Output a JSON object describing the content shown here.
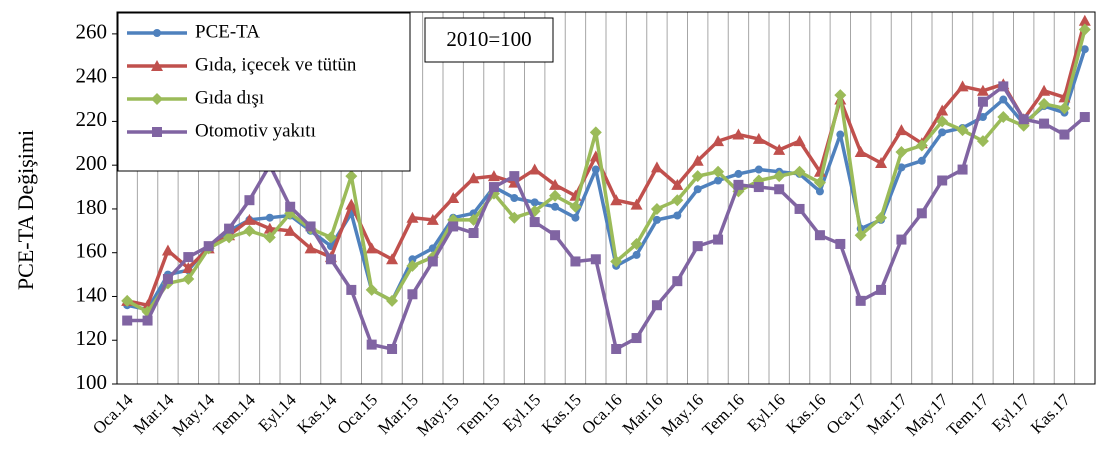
{
  "chart_data": {
    "type": "line",
    "y_label": "PCE-TA Değişimi",
    "annotation": "2010=100",
    "categories": [
      "Oca.14",
      null,
      "Mar.14",
      null,
      "May.14",
      null,
      "Tem.14",
      null,
      "Eyl.14",
      null,
      "Kas.14",
      null,
      "Oca.15",
      null,
      "Mar.15",
      null,
      "May.15",
      null,
      "Tem.15",
      null,
      "Eyl.15",
      null,
      "Kas.15",
      null,
      "Oca.16",
      null,
      "Mar.16",
      null,
      "May.16",
      null,
      "Tem.16",
      null,
      "Eyl.16",
      null,
      "Kas.16",
      null,
      "Oca.17",
      null,
      "Mar.17",
      null,
      "May.17",
      null,
      "Tem.17",
      null,
      "Eyl.17",
      null,
      "Kas.17",
      null
    ],
    "series": [
      {
        "name": "PCE-TA",
        "color": "#4f81bd",
        "marker": "circle",
        "values": [
          136,
          134,
          150,
          152,
          163,
          170,
          175,
          176,
          177,
          170,
          163,
          178,
          143,
          138,
          157,
          162,
          176,
          178,
          190,
          185,
          183,
          181,
          176,
          198,
          154,
          159,
          175,
          177,
          189,
          193,
          196,
          198,
          197,
          196,
          188,
          214,
          171,
          175,
          199,
          202,
          215,
          217,
          222,
          230,
          219,
          227,
          224,
          253
        ]
      },
      {
        "name": "Gıda, içecek ve tütün",
        "color": "#c0504d",
        "marker": "triangle",
        "values": [
          138,
          136,
          161,
          153,
          162,
          168,
          175,
          171,
          170,
          162,
          158,
          182,
          162,
          157,
          176,
          175,
          185,
          194,
          195,
          192,
          198,
          191,
          186,
          204,
          184,
          182,
          199,
          191,
          202,
          211,
          214,
          212,
          207,
          211,
          197,
          230,
          206,
          201,
          216,
          210,
          225,
          236,
          234,
          237,
          221,
          234,
          231,
          266
        ]
      },
      {
        "name": "Gıda dışı",
        "color": "#9bbb59",
        "marker": "diamond",
        "values": [
          138,
          133,
          146,
          148,
          162,
          167,
          170,
          167,
          178,
          171,
          167,
          195,
          143,
          138,
          154,
          158,
          175,
          175,
          187,
          176,
          179,
          186,
          181,
          215,
          156,
          164,
          180,
          184,
          195,
          197,
          188,
          193,
          195,
          197,
          192,
          232,
          168,
          176,
          206,
          209,
          220,
          216,
          211,
          222,
          218,
          228,
          226,
          262
        ]
      },
      {
        "name": "Otomotiv yakıtı",
        "color": "#8064a2",
        "marker": "square",
        "values": [
          129,
          129,
          148,
          158,
          163,
          171,
          184,
          200,
          181,
          172,
          157,
          143,
          118,
          116,
          141,
          156,
          172,
          169,
          190,
          195,
          174,
          168,
          156,
          157,
          116,
          121,
          136,
          147,
          163,
          166,
          191,
          190,
          189,
          180,
          168,
          164,
          138,
          143,
          166,
          178,
          193,
          198,
          229,
          236,
          221,
          219,
          214,
          222
        ]
      }
    ],
    "ylim": [
      100,
      270
    ],
    "yticks": [
      100,
      120,
      140,
      160,
      180,
      200,
      220,
      240,
      260
    ],
    "grid": "x",
    "legend": "upper left"
  }
}
